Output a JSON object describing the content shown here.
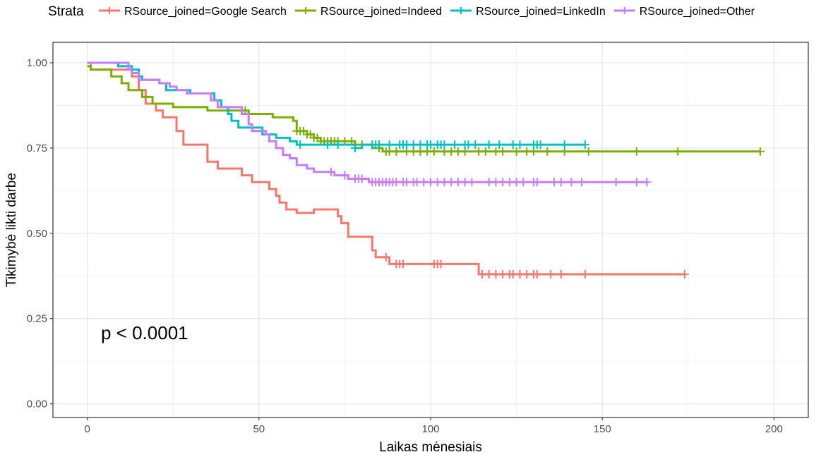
{
  "chart_data": {
    "type": "line",
    "subtype": "kaplan-meier-step",
    "xlabel": "Laikas mėnesiais",
    "ylabel": "Tikimybė likti darbe",
    "xlim": [
      -10,
      210
    ],
    "ylim": [
      -0.04,
      1.06
    ],
    "x_ticks": [
      0,
      50,
      100,
      150,
      200
    ],
    "x_tick_labels": [
      "0",
      "50",
      "100",
      "150",
      "200"
    ],
    "y_ticks": [
      0,
      0.25,
      0.5,
      0.75,
      1.0
    ],
    "y_tick_labels": [
      "0.00",
      "0.25",
      "0.50",
      "0.75",
      "1.00"
    ],
    "grid": true,
    "legend": {
      "title": "Strata",
      "placement": "top"
    },
    "annotation": "p < 0.0001",
    "series": [
      {
        "name": "RSource_joined=Google Search",
        "color": "#F8766D",
        "steps": [
          [
            0,
            1.0
          ],
          [
            1,
            0.98
          ],
          [
            13,
            0.96
          ],
          [
            15,
            0.92
          ],
          [
            17,
            0.88
          ],
          [
            20,
            0.86
          ],
          [
            22,
            0.84
          ],
          [
            26,
            0.8
          ],
          [
            28,
            0.76
          ],
          [
            35,
            0.71
          ],
          [
            38,
            0.69
          ],
          [
            45,
            0.67
          ],
          [
            48,
            0.65
          ],
          [
            53,
            0.63
          ],
          [
            55,
            0.61
          ],
          [
            56,
            0.59
          ],
          [
            58,
            0.57
          ],
          [
            61,
            0.56
          ],
          [
            66,
            0.57
          ],
          [
            73,
            0.55
          ],
          [
            74,
            0.53
          ],
          [
            76,
            0.49
          ],
          [
            83,
            0.45
          ],
          [
            84,
            0.43
          ],
          [
            86,
            0.43
          ],
          [
            88,
            0.41
          ],
          [
            114,
            0.38
          ],
          [
            174,
            0.38
          ]
        ],
        "censored": [
          87,
          90,
          91,
          92,
          101,
          102,
          103,
          115,
          117,
          119,
          121,
          123,
          124,
          126,
          128,
          130,
          131,
          135,
          138,
          145,
          174
        ]
      },
      {
        "name": "RSource_joined=Indeed",
        "color": "#7CAE00",
        "steps": [
          [
            0,
            0.99
          ],
          [
            1,
            0.98
          ],
          [
            7,
            0.96
          ],
          [
            10,
            0.94
          ],
          [
            12,
            0.92
          ],
          [
            16,
            0.9
          ],
          [
            19,
            0.88
          ],
          [
            25,
            0.87
          ],
          [
            35,
            0.86
          ],
          [
            47,
            0.85
          ],
          [
            54,
            0.84
          ],
          [
            60,
            0.83
          ],
          [
            61,
            0.8
          ],
          [
            64,
            0.79
          ],
          [
            66,
            0.78
          ],
          [
            68,
            0.77
          ],
          [
            78,
            0.76
          ],
          [
            83,
            0.75
          ],
          [
            86,
            0.74
          ],
          [
            196,
            0.74
          ]
        ],
        "censored": [
          46,
          61,
          62,
          63,
          64,
          65,
          66,
          67,
          68,
          69,
          70,
          71,
          72,
          73,
          75,
          77,
          80,
          85,
          87,
          88,
          90,
          93,
          95,
          97,
          99,
          101,
          104,
          106,
          108,
          110,
          114,
          116,
          119,
          121,
          125,
          128,
          130,
          134,
          139,
          146,
          160,
          172,
          196
        ]
      },
      {
        "name": "RSource_joined=LinkedIn",
        "color": "#00BFC4",
        "steps": [
          [
            0,
            1.0
          ],
          [
            9,
            0.99
          ],
          [
            13,
            0.98
          ],
          [
            15,
            0.96
          ],
          [
            16,
            0.95
          ],
          [
            21,
            0.94
          ],
          [
            23,
            0.92
          ],
          [
            30,
            0.91
          ],
          [
            37,
            0.89
          ],
          [
            39,
            0.87
          ],
          [
            41,
            0.85
          ],
          [
            42,
            0.83
          ],
          [
            44,
            0.81
          ],
          [
            51,
            0.79
          ],
          [
            55,
            0.78
          ],
          [
            59,
            0.77
          ],
          [
            61,
            0.76
          ],
          [
            78,
            0.75
          ],
          [
            80,
            0.76
          ],
          [
            83,
            0.76
          ],
          [
            87,
            0.76
          ],
          [
            92,
            0.76
          ],
          [
            103,
            0.76
          ],
          [
            145,
            0.76
          ]
        ],
        "censored": [
          62,
          70,
          73,
          78,
          83,
          84,
          85,
          88,
          91,
          92,
          93,
          95,
          97,
          99,
          100,
          102,
          103,
          104,
          107,
          110,
          111,
          113,
          117,
          120,
          124,
          126,
          130,
          131,
          132,
          139,
          145
        ]
      },
      {
        "name": "RSource_joined=Other",
        "color": "#C77CFF",
        "steps": [
          [
            0,
            1.0
          ],
          [
            12,
            0.98
          ],
          [
            13,
            0.97
          ],
          [
            15,
            0.95
          ],
          [
            21,
            0.94
          ],
          [
            24,
            0.93
          ],
          [
            26,
            0.92
          ],
          [
            29,
            0.91
          ],
          [
            36,
            0.89
          ],
          [
            38,
            0.87
          ],
          [
            45,
            0.85
          ],
          [
            47,
            0.82
          ],
          [
            48,
            0.8
          ],
          [
            52,
            0.79
          ],
          [
            53,
            0.77
          ],
          [
            55,
            0.75
          ],
          [
            57,
            0.73
          ],
          [
            59,
            0.72
          ],
          [
            61,
            0.7
          ],
          [
            64,
            0.69
          ],
          [
            66,
            0.68
          ],
          [
            72,
            0.67
          ],
          [
            76,
            0.66
          ],
          [
            82,
            0.65
          ],
          [
            163,
            0.65
          ]
        ],
        "censored": [
          71,
          75,
          78,
          79,
          80,
          83,
          84,
          85,
          86,
          87,
          88,
          89,
          90,
          92,
          93,
          95,
          96,
          98,
          100,
          102,
          104,
          106,
          108,
          110,
          112,
          117,
          119,
          121,
          123,
          125,
          127,
          130,
          131,
          136,
          138,
          141,
          144,
          154,
          160,
          163
        ]
      }
    ]
  }
}
